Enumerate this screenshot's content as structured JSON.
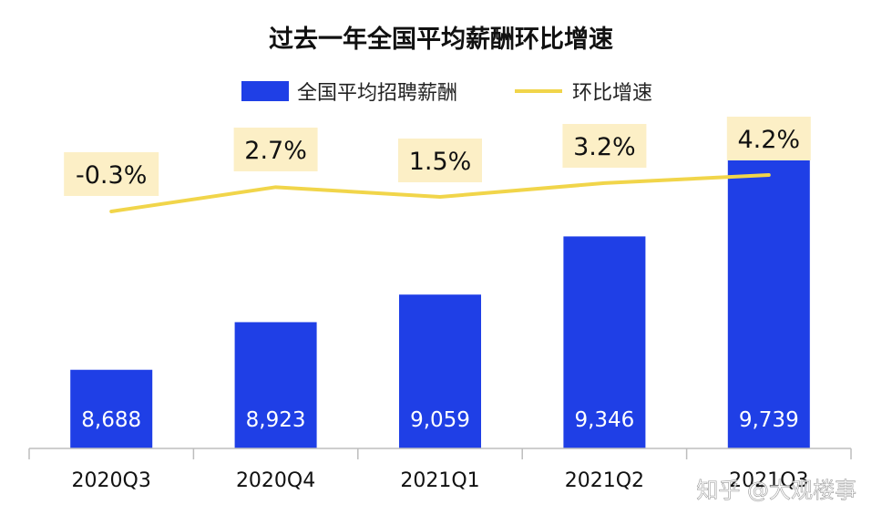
{
  "chart_data": {
    "type": "bar",
    "title": "过去一年全国平均薪酬环比增速",
    "categories": [
      "2020Q3",
      "2020Q4",
      "2021Q1",
      "2021Q2",
      "2021Q3"
    ],
    "series": [
      {
        "name": "全国平均招聘薪酬",
        "type": "bar",
        "color": "#1f3fe6",
        "values": [
          8688,
          8923,
          9059,
          9346,
          9739
        ],
        "labels": [
          "8,688",
          "8,923",
          "9,059",
          "9,346",
          "9,739"
        ]
      },
      {
        "name": "环比增速",
        "type": "line",
        "color": "#f1d54a",
        "values": [
          -0.3,
          2.7,
          1.5,
          3.2,
          4.2
        ],
        "labels": [
          "-0.3%",
          "2.7%",
          "1.5%",
          "3.2%",
          "4.2%"
        ]
      }
    ],
    "legend": "top-center",
    "grid": false
  },
  "watermark": "知乎 @大观楼事"
}
